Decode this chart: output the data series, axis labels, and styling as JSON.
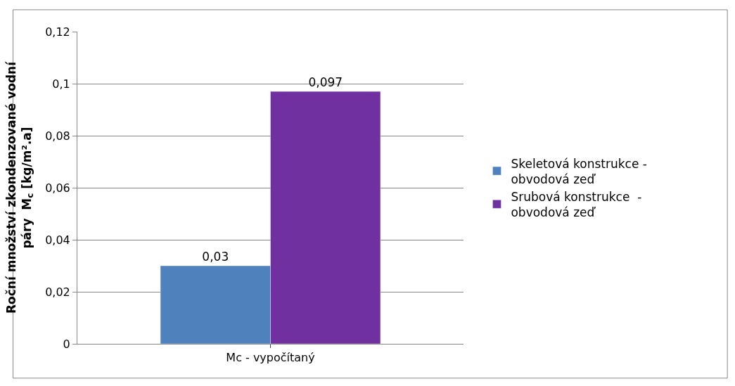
{
  "chart_data": {
    "type": "bar",
    "ylabel": "Roční množství zkondenzované vodní\npáry  M$_{c}$ [kg/m².a]",
    "categories": [
      "Mc - vypočítaný"
    ],
    "series": [
      {
        "name": "Skeletová konstrukce - obvodová zeď",
        "color": "#4f81bd",
        "values": [
          0.03
        ],
        "value_labels": [
          "0,03"
        ]
      },
      {
        "name": "Srubová konstrukce  - obvodová zeď",
        "color": "#7030a0",
        "values": [
          0.097
        ],
        "value_labels": [
          "0,097"
        ]
      }
    ],
    "ylim": [
      0,
      0.12
    ],
    "yticks": [
      0,
      {
        "value": 0.02,
        "label": "0,02"
      },
      {
        "value": 0.04,
        "label": "0,04"
      },
      {
        "value": 0.06,
        "label": "0,06"
      },
      {
        "value": 0.08,
        "label": "0,08"
      },
      {
        "value": 0.1,
        "label": "0,1"
      },
      {
        "value": 0.12,
        "label": "0,12"
      }
    ],
    "grid": "y",
    "legend": "right"
  }
}
